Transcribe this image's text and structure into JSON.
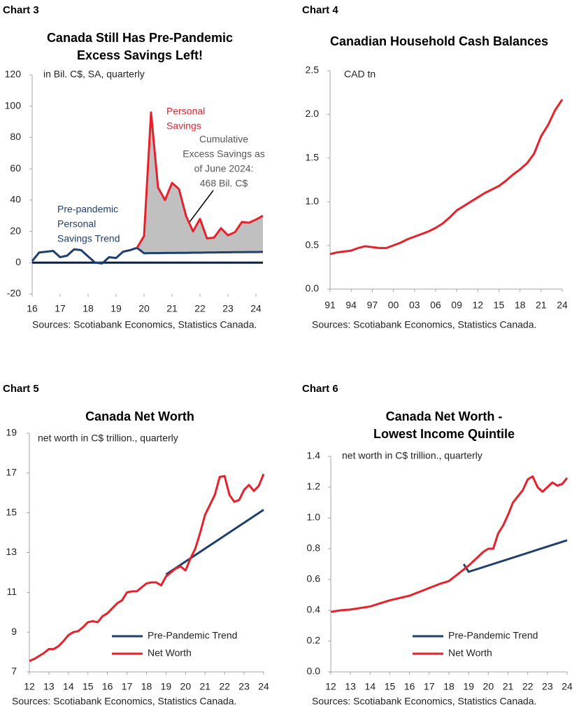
{
  "chart_data": [
    {
      "type": "line",
      "label": "Chart 3",
      "title": [
        "Canada Still Has Pre-Pandemic",
        "Excess Savings Left!"
      ],
      "subtitle": "in Bil. C$, SA, quarterly",
      "source": "Sources: Scotiabank Economics, Statistics Canada.",
      "x": [
        2016,
        2016.25,
        2016.5,
        2016.75,
        2017,
        2017.25,
        2017.5,
        2017.75,
        2018,
        2018.25,
        2018.5,
        2018.75,
        2019,
        2019.25,
        2019.5,
        2019.75,
        2020,
        2020.25,
        2020.5,
        2020.75,
        2021,
        2021.25,
        2021.5,
        2021.75,
        2022,
        2022.25,
        2022.5,
        2022.75,
        2023,
        2023.25,
        2023.5,
        2023.75,
        2024,
        2024.25
      ],
      "series": [
        {
          "color": "#1f3f6e",
          "values": [
            1,
            6.5,
            7,
            7.5,
            3.5,
            4.5,
            8.5,
            8,
            4,
            0,
            -0.5,
            3.5,
            3,
            7,
            8,
            9.5,
            6,
            6.1,
            6.1,
            6.2,
            6.2,
            6.3,
            6.3,
            6.4,
            6.4,
            6.5,
            6.5,
            6.6,
            6.6,
            6.7,
            6.7,
            6.8,
            6.8,
            6.9
          ]
        },
        {
          "color": "#e8202a",
          "values": [
            null,
            null,
            null,
            null,
            null,
            null,
            null,
            null,
            null,
            null,
            null,
            null,
            null,
            null,
            null,
            9.5,
            17,
            96,
            48,
            40,
            51,
            47,
            30,
            20,
            28,
            15.5,
            16,
            22,
            17.5,
            19.5,
            26,
            25.5,
            27.5,
            30
          ]
        }
      ],
      "shade_between": true,
      "fill_color": "#c0c0c0",
      "zero_line": true,
      "annotations": [
        {
          "text": [
            "Personal",
            "Savings"
          ],
          "color": "#e8202a"
        },
        {
          "text": [
            "Cumulative",
            "Excess Savings as",
            "of June 2024:",
            "468 Bil. C$"
          ],
          "color": "#555555"
        },
        {
          "text": [
            "Pre-pandemic",
            "Personal",
            "Savings Trend"
          ],
          "color": "#1f3f6e"
        }
      ],
      "xlim": [
        2016,
        2024.25
      ],
      "xticks": [
        {
          "value": 2016,
          "label": "16"
        },
        {
          "value": 2017,
          "label": "17"
        },
        {
          "value": 2018,
          "label": "18"
        },
        {
          "value": 2019,
          "label": "19"
        },
        {
          "value": 2020,
          "label": "20"
        },
        {
          "value": 2021,
          "label": "21"
        },
        {
          "value": 2022,
          "label": "22"
        },
        {
          "value": 2023,
          "label": "23"
        },
        {
          "value": 2024,
          "label": "24"
        }
      ],
      "ylim": [
        -20,
        120
      ],
      "yticks": [
        -20,
        0,
        20,
        40,
        60,
        80,
        100,
        120
      ]
    },
    {
      "type": "line",
      "label": "Chart 4",
      "title": [
        "Canadian Household Cash Balances"
      ],
      "subtitle": "CAD tn",
      "source": "Sources: Scotiabank Economics, Statistics Canada.",
      "x": [
        1991,
        1992,
        1993,
        1994,
        1995,
        1996,
        1997,
        1998,
        1999,
        2000,
        2001,
        2002,
        2003,
        2004,
        2005,
        2006,
        2007,
        2008,
        2009,
        2010,
        2011,
        2012,
        2013,
        2014,
        2015,
        2016,
        2017,
        2018,
        2019,
        2020,
        2021,
        2022,
        2023,
        2024
      ],
      "series": [
        {
          "color": "#e8202a",
          "values": [
            0.4,
            0.42,
            0.43,
            0.44,
            0.47,
            0.49,
            0.48,
            0.47,
            0.47,
            0.5,
            0.53,
            0.57,
            0.6,
            0.63,
            0.66,
            0.7,
            0.75,
            0.82,
            0.9,
            0.95,
            1.0,
            1.05,
            1.1,
            1.14,
            1.18,
            1.24,
            1.31,
            1.37,
            1.44,
            1.55,
            1.75,
            1.88,
            2.05,
            2.17
          ]
        }
      ],
      "xlim": [
        1991,
        2024
      ],
      "xticks": [
        {
          "value": 1991,
          "label": "91"
        },
        {
          "value": 1994,
          "label": "94"
        },
        {
          "value": 1997,
          "label": "97"
        },
        {
          "value": 2000,
          "label": "00"
        },
        {
          "value": 2003,
          "label": "03"
        },
        {
          "value": 2006,
          "label": "06"
        },
        {
          "value": 2009,
          "label": "09"
        },
        {
          "value": 2012,
          "label": "12"
        },
        {
          "value": 2015,
          "label": "15"
        },
        {
          "value": 2018,
          "label": "18"
        },
        {
          "value": 2021,
          "label": "21"
        },
        {
          "value": 2024,
          "label": "24"
        }
      ],
      "ylim": [
        0,
        2.5
      ],
      "yticks": [
        {
          "value": 0,
          "label": "0.0"
        },
        0.5,
        {
          "value": 1,
          "label": "1.0"
        },
        1.5,
        {
          "value": 2,
          "label": "2.0"
        },
        2.5
      ]
    },
    {
      "type": "line",
      "label": "Chart 5",
      "title": [
        "Canada Net Worth"
      ],
      "subtitle": "net worth in C$ trillion., quarterly",
      "source": "Sources: Scotiabank Economics, Statistics Canada.",
      "legend": "lower right",
      "series": [
        {
          "name": "Pre-Pandemic Trend",
          "color": "#1f3f6e",
          "x": [
            2019,
            2024
          ],
          "values": [
            11.9,
            15.15
          ]
        },
        {
          "name": "Net Worth",
          "color": "#e8202a",
          "x": [
            2012,
            2012.25,
            2012.5,
            2012.75,
            2013,
            2013.25,
            2013.5,
            2013.75,
            2014,
            2014.25,
            2014.5,
            2014.75,
            2015,
            2015.25,
            2015.5,
            2015.75,
            2016,
            2016.25,
            2016.5,
            2016.75,
            2017,
            2017.25,
            2017.5,
            2017.75,
            2018,
            2018.25,
            2018.5,
            2018.75,
            2019,
            2019.25,
            2019.5,
            2019.75,
            2020,
            2020.25,
            2020.5,
            2020.75,
            2021,
            2021.25,
            2021.5,
            2021.75,
            2022,
            2022.25,
            2022.5,
            2022.75,
            2023,
            2023.25,
            2023.5,
            2023.75,
            2024
          ],
          "values": [
            7.55,
            7.65,
            7.8,
            7.95,
            8.15,
            8.15,
            8.3,
            8.55,
            8.85,
            9.0,
            9.05,
            9.25,
            9.5,
            9.55,
            9.5,
            9.8,
            9.95,
            10.2,
            10.45,
            10.6,
            11.0,
            11.05,
            11.05,
            11.25,
            11.45,
            11.5,
            11.5,
            11.35,
            11.8,
            12.0,
            12.2,
            12.3,
            12.1,
            12.7,
            13.2,
            14.0,
            14.9,
            15.4,
            15.9,
            16.8,
            16.85,
            15.9,
            15.55,
            15.65,
            16.15,
            16.4,
            16.1,
            16.35,
            16.95
          ]
        }
      ],
      "xlim": [
        2012,
        2024
      ],
      "xticks": [
        {
          "value": 2012,
          "label": "12"
        },
        {
          "value": 2013,
          "label": "13"
        },
        {
          "value": 2014,
          "label": "14"
        },
        {
          "value": 2015,
          "label": "15"
        },
        {
          "value": 2016,
          "label": "16"
        },
        {
          "value": 2017,
          "label": "17"
        },
        {
          "value": 2018,
          "label": "18"
        },
        {
          "value": 2019,
          "label": "19"
        },
        {
          "value": 2020,
          "label": "20"
        },
        {
          "value": 2021,
          "label": "21"
        },
        {
          "value": 2022,
          "label": "22"
        },
        {
          "value": 2023,
          "label": "23"
        },
        {
          "value": 2024,
          "label": "24"
        }
      ],
      "ylim": [
        7,
        19
      ],
      "yticks": [
        7,
        9,
        11,
        13,
        15,
        17,
        19
      ]
    },
    {
      "type": "line",
      "label": "Chart 6",
      "title": [
        "Canada Net Worth -",
        "Lowest Income Quintile"
      ],
      "subtitle": "net worth in C$ trillion., quarterly",
      "source": "Sources: Scotiabank Economics, Statistics Canada.",
      "legend": "lower right",
      "series": [
        {
          "name": "Pre-Pandemic Trend",
          "color": "#1f3f6e",
          "x": [
            2018.75,
            2019,
            2024
          ],
          "values": [
            0.7,
            0.65,
            0.855
          ]
        },
        {
          "name": "Net Worth",
          "color": "#e8202a",
          "x": [
            2012,
            2012.5,
            2013,
            2013.5,
            2014,
            2014.5,
            2015,
            2015.5,
            2016,
            2016.5,
            2017,
            2017.5,
            2018,
            2018.5,
            2019,
            2019.25,
            2019.5,
            2019.75,
            2020,
            2020.25,
            2020.5,
            2020.75,
            2021,
            2021.25,
            2021.5,
            2021.75,
            2022,
            2022.25,
            2022.5,
            2022.75,
            2023,
            2023.25,
            2023.5,
            2023.75,
            2024
          ],
          "values": [
            0.39,
            0.4,
            0.405,
            0.415,
            0.425,
            0.445,
            0.465,
            0.48,
            0.495,
            0.52,
            0.545,
            0.57,
            0.59,
            0.64,
            0.69,
            0.72,
            0.75,
            0.78,
            0.8,
            0.8,
            0.9,
            0.95,
            1.02,
            1.1,
            1.14,
            1.18,
            1.25,
            1.27,
            1.2,
            1.17,
            1.2,
            1.23,
            1.21,
            1.22,
            1.26
          ]
        }
      ],
      "xlim": [
        2012,
        2024
      ],
      "xticks": [
        {
          "value": 2012,
          "label": "12"
        },
        {
          "value": 2013,
          "label": "13"
        },
        {
          "value": 2014,
          "label": "14"
        },
        {
          "value": 2015,
          "label": "15"
        },
        {
          "value": 2016,
          "label": "16"
        },
        {
          "value": 2017,
          "label": "17"
        },
        {
          "value": 2018,
          "label": "18"
        },
        {
          "value": 2019,
          "label": "19"
        },
        {
          "value": 2020,
          "label": "20"
        },
        {
          "value": 2021,
          "label": "21"
        },
        {
          "value": 2022,
          "label": "22"
        },
        {
          "value": 2023,
          "label": "23"
        },
        {
          "value": 2024,
          "label": "24"
        }
      ],
      "ylim": [
        0,
        1.4
      ],
      "yticks": [
        {
          "value": 0,
          "label": "0.0"
        },
        0.2,
        0.4,
        0.6,
        0.8,
        {
          "value": 1,
          "label": "1.0"
        },
        1.2,
        1.4
      ]
    }
  ]
}
